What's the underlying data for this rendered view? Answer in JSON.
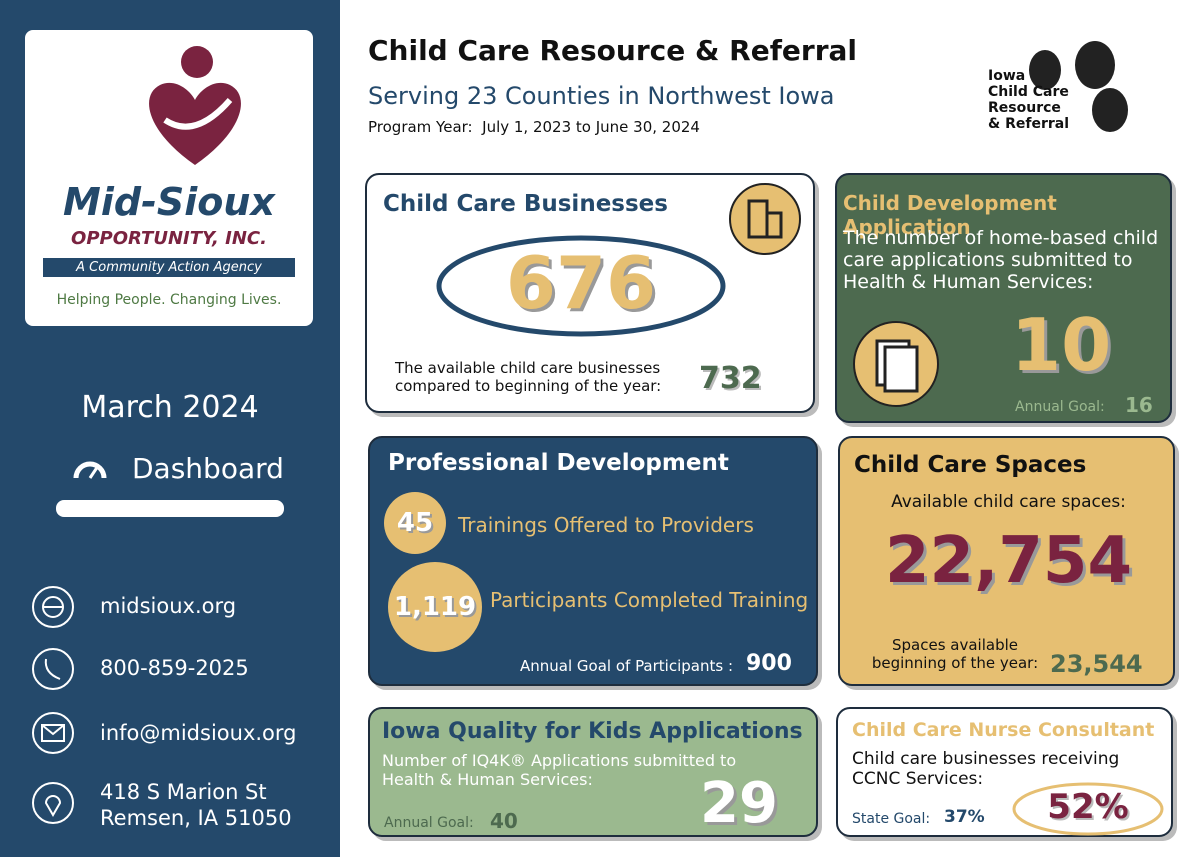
{
  "sidebar": {
    "logo_name": "Mid-Sioux",
    "logo_sub": "OPPORTUNITY, INC.",
    "logo_tagline": "A Community Action Agency",
    "logo_slogan": "Helping People. Changing Lives.",
    "month": "March 2024",
    "dashboard": "Dashboard",
    "website": "midsioux.org",
    "phone": "800-859-2025",
    "email": "info@midsioux.org",
    "address_line1": "418 S Marion St",
    "address_line2": "Remsen, IA 51050"
  },
  "header": {
    "title": "Child Care Resource & Referral",
    "subtitle": "Serving 23 Counties in Northwest Iowa",
    "program_year": "Program Year:  July 1, 2023 to June 30, 2024",
    "partner_logo": [
      "Iowa",
      "Child Care",
      "Resource",
      "& Referral"
    ]
  },
  "businesses": {
    "title": "Child Care Businesses",
    "value": "676",
    "note": "The available child care businesses compared to beginning of the year:",
    "baseline": "732"
  },
  "development": {
    "title": "Child Development Application",
    "text": "The number of home-based child care applications submitted to Health & Human Services:",
    "value": "10",
    "goal_label": "Annual Goal:",
    "goal": "16"
  },
  "professional": {
    "title": "Professional Development",
    "trainings_value": "45",
    "trainings_label": "Trainings Offered to Providers",
    "participants_value": "1,119",
    "participants_label": "Participants Completed Training",
    "goal_label": "Annual Goal of Participants :",
    "goal": "900"
  },
  "spaces": {
    "title": "Child Care Spaces",
    "label": "Available child care spaces:",
    "value": "22,754",
    "baseline_label": "Spaces available beginning of the year:",
    "baseline": "23,544"
  },
  "iq4k": {
    "title": "Iowa Quality for Kids Applications",
    "text": "Number of IQ4K® Applications submitted to Health & Human Services:",
    "goal_label": "Annual Goal:",
    "goal": "40",
    "value": "29"
  },
  "nurse": {
    "title": "Child Care Nurse Consultant",
    "text": "Child care businesses receiving CCNC Services:",
    "goal_label": "State Goal:",
    "goal": "37%",
    "value": "52%"
  }
}
